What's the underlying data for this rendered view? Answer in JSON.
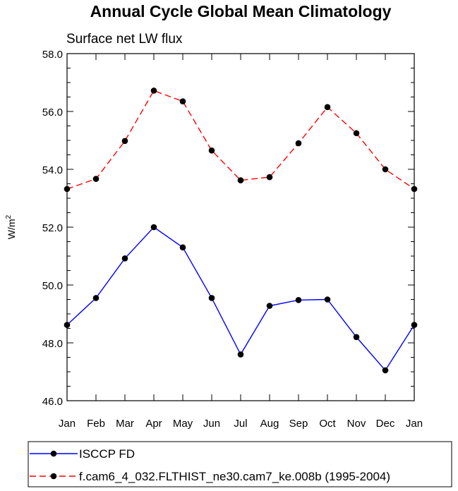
{
  "chart_data": {
    "type": "line",
    "title": "Annual Cycle Global Mean Climatology",
    "subtitle": "Surface net LW flux",
    "ylabel": "W/m",
    "ylabel_sup": "2",
    "xlabel": "",
    "categories": [
      "Jan",
      "Feb",
      "Mar",
      "Apr",
      "May",
      "Jun",
      "Jul",
      "Aug",
      "Sep",
      "Oct",
      "Nov",
      "Dec",
      "Jan"
    ],
    "ylim": [
      46.0,
      58.0
    ],
    "yticks": [
      "46.0",
      "48.0",
      "50.0",
      "52.0",
      "54.0",
      "56.0",
      "58.0"
    ],
    "grid": false,
    "legend_position": "bottom",
    "series": [
      {
        "name": "ISCCP FD",
        "color": "#0000ff",
        "dash": "solid",
        "marker": "filled-circle",
        "values": [
          48.62,
          49.55,
          50.92,
          52.0,
          51.3,
          49.55,
          47.6,
          49.28,
          49.48,
          49.5,
          48.2,
          47.05,
          48.62
        ]
      },
      {
        "name": "f.cam6_4_032.FLTHIST_ne30.cam7_ke.008b (1995-2004)",
        "color": "#ff0000",
        "dash": "dashed",
        "marker": "filled-circle",
        "values": [
          53.32,
          53.67,
          54.98,
          56.72,
          56.35,
          54.65,
          53.62,
          53.73,
          54.9,
          56.15,
          55.25,
          54.0,
          53.32
        ]
      }
    ]
  }
}
